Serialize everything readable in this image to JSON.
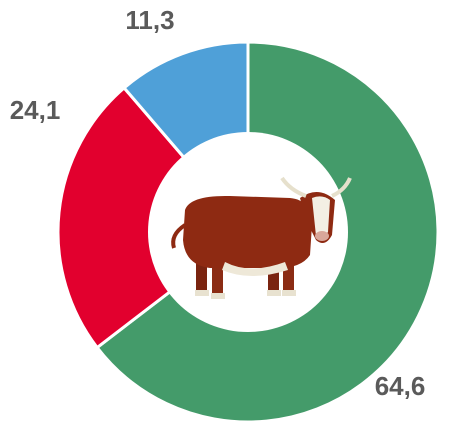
{
  "chart_data": {
    "type": "pie",
    "donut": true,
    "values": [
      64.6,
      24.1,
      11.3
    ],
    "value_labels": [
      "64,6",
      "24,1",
      "11,3"
    ],
    "colors": [
      "#449b6a",
      "#e2002e",
      "#4fa0d8"
    ]
  }
}
